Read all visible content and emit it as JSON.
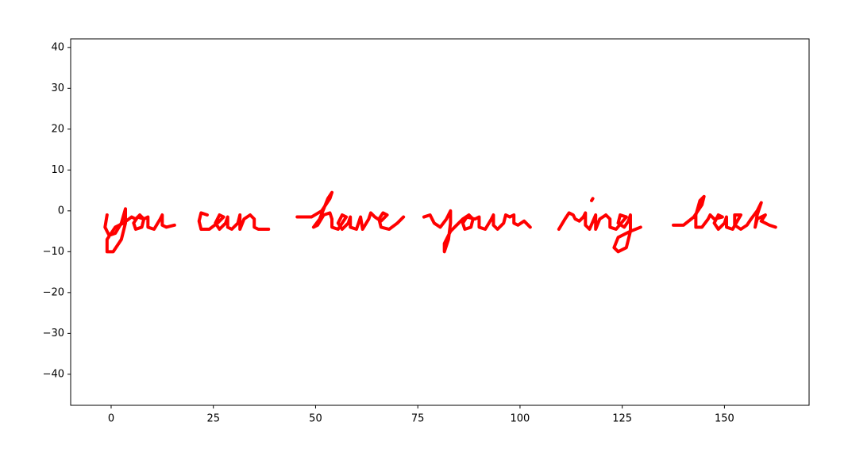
{
  "chart_data": {
    "type": "line",
    "x": [
      -1,
      -1.5,
      -0.5,
      1,
      2.5,
      3.5,
      3.5,
      2.5,
      0.5,
      -1,
      -1,
      1,
      3,
      5,
      6,
      7,
      8,
      7.5,
      6,
      5.5,
      6.5,
      8,
      9,
      9,
      10.5,
      12,
      12.5,
      12.5,
      13.5,
      15.5,
      null,
      23.5,
      22,
      21.5,
      22,
      24,
      26,
      27.5,
      26.5,
      25.5,
      26.5,
      28,
      28.5,
      28.5,
      29.5,
      31,
      31.5,
      31.5,
      32.5,
      34,
      35,
      35,
      36,
      38.5,
      null,
      45.5,
      49,
      51.5,
      53.5,
      54,
      53,
      51,
      49.5,
      50.5,
      52,
      53.5,
      54,
      54,
      55.5,
      57.5,
      56.5,
      55.5,
      56.5,
      58,
      58.5,
      58.5,
      60,
      61,
      61.5,
      63,
      63.5,
      64.5,
      66,
      67.5,
      66.5,
      65.5,
      66,
      68,
      70,
      71.5,
      null,
      76.5,
      78,
      79,
      80.5,
      82,
      83,
      83,
      82.5,
      81.5,
      81.5,
      83,
      85,
      86,
      87.5,
      88.5,
      88,
      86.5,
      86,
      87,
      89,
      90,
      90,
      91.5,
      93,
      93.5,
      93.5,
      94.5,
      96,
      96.5,
      97.5,
      98.5,
      98.5,
      99.5,
      101,
      102.5,
      null,
      109.5,
      111,
      112,
      113,
      113.5,
      114.5,
      115.5,
      116,
      116,
      117,
      118.5,
      118.5,
      119.5,
      121,
      122,
      122,
      123.5,
      126,
      124.5,
      124,
      125.5,
      126.5,
      127,
      127,
      126,
      124,
      123,
      124,
      127,
      129.5,
      null,
      117.5,
      117.8,
      null,
      137.5,
      140,
      142.5,
      144.5,
      145,
      144,
      143,
      143,
      144.5,
      146,
      146.5,
      147.5,
      149.5,
      148.5,
      147.5,
      148.5,
      150,
      150.5,
      150.5,
      152,
      154,
      152.5,
      152.5,
      154,
      155.5,
      156.5,
      158,
      159,
      158,
      157.5,
      158,
      160,
      159,
      161,
      162.5
    ],
    "series": [
      {
        "color": "#ff0000",
        "values": [
          -1,
          -4,
          -6,
          -5.5,
          -3,
          0.5,
          -3,
          -7,
          -10,
          -10,
          -7,
          -4,
          -3,
          -1.5,
          -2,
          -1,
          -2,
          -4,
          -4.5,
          -3,
          -1.5,
          -2,
          -1.5,
          -4,
          -4.5,
          -2,
          -1,
          -3.5,
          -4,
          -3.5,
          null,
          -1,
          -0.5,
          -2.5,
          -4.5,
          -4.5,
          -3,
          -1.5,
          -1,
          -3,
          -4.5,
          -3,
          -1.5,
          -4,
          -4.5,
          -3,
          -1,
          -4.5,
          -2,
          -1,
          -2,
          -4,
          -4.5,
          -4.5,
          null,
          -1.5,
          -1.5,
          0,
          3,
          4.5,
          3,
          -2,
          -4,
          -3.5,
          -1,
          -0.5,
          -2,
          -4,
          -4.5,
          -1.5,
          -1,
          -3,
          -4.5,
          -3,
          -1.5,
          -4,
          -4.5,
          -1.5,
          -4.5,
          -2,
          -0.5,
          -1.5,
          -2.5,
          -1,
          -0.5,
          -2,
          -4,
          -4.5,
          -3,
          -1.5,
          null,
          -1.5,
          -1,
          -3,
          -4,
          -2,
          0,
          -3,
          -7,
          -10,
          -8,
          -5,
          -3,
          -2,
          -1,
          -2,
          -4,
          -4.5,
          -3,
          -1.5,
          -2,
          -1.5,
          -4,
          -4.5,
          -2,
          -1,
          -3.5,
          -4.5,
          -3,
          -1,
          -1.5,
          -1,
          -3,
          -3.5,
          -2.5,
          -4,
          null,
          -4.5,
          -2,
          -0.5,
          -1,
          -2,
          -2.5,
          -1.5,
          -0.5,
          -3.5,
          -4.5,
          -1,
          -4.5,
          -2,
          -1,
          -2,
          -4,
          -4.5,
          -1.5,
          -1,
          -3,
          -4,
          -2.5,
          -1,
          -5,
          -9,
          -10,
          -9,
          -6.5,
          -5,
          -4,
          null,
          2.5,
          3,
          null,
          -3.5,
          -3.5,
          -1.5,
          1.5,
          3.5,
          2.5,
          -1,
          -4,
          -4,
          -2,
          -1,
          -2,
          -1.5,
          -1,
          -3,
          -4.5,
          -3,
          -1.5,
          -4,
          -4.5,
          -1,
          -1,
          -3.5,
          -4.5,
          -3.5,
          -2,
          0,
          2,
          -1,
          -4,
          -2,
          -1,
          -2.5,
          -3.5,
          -4
        ]
      }
    ],
    "xlim": [
      -9.9,
      170.7
    ],
    "ylim": [
      -47.6,
      42.1
    ],
    "xticks": [
      0,
      25,
      50,
      75,
      100,
      125,
      150
    ],
    "yticks": [
      {
        "value": -40,
        "label": "−40"
      },
      {
        "value": -30,
        "label": "−30"
      },
      {
        "value": -20,
        "label": "−20"
      },
      {
        "value": -10,
        "label": "−10"
      },
      0,
      10,
      20,
      30,
      40
    ],
    "grid": false
  }
}
